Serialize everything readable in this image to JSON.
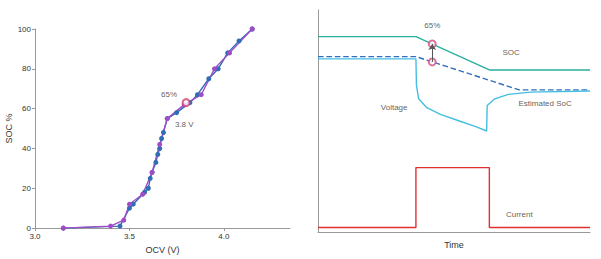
{
  "chart_data": [
    {
      "type": "line",
      "xlabel": "OCV (V)",
      "ylabel": "SOC %",
      "xlim": [
        3.0,
        4.35
      ],
      "xticks": [
        {
          "value": 3.0,
          "label": "3.0"
        },
        3.5,
        {
          "value": 4.0,
          "label": "4.0"
        }
      ],
      "ylim": [
        0,
        100
      ],
      "yticks": [
        0,
        20,
        40,
        60,
        80,
        100
      ],
      "grid": false,
      "series": [
        {
          "color": "#2f6db5",
          "marker": "circle",
          "line_style": "solid",
          "x": [
            3.15,
            3.45,
            3.5,
            3.52,
            3.58,
            3.6,
            3.61,
            3.62,
            3.64,
            3.65,
            3.66,
            3.67,
            3.68,
            3.7,
            3.75,
            3.82,
            3.86,
            3.92,
            3.97,
            4.02,
            4.08,
            4.15
          ],
          "values": [
            0,
            1,
            10,
            12,
            18,
            20,
            25,
            28,
            33,
            37,
            40,
            45,
            48,
            55,
            58,
            63,
            67,
            75,
            80,
            88,
            94,
            100
          ]
        },
        {
          "color": "#a04cc8",
          "marker": "circle",
          "line_style": "solid",
          "x": [
            3.15,
            3.4,
            3.47,
            3.5,
            3.57,
            3.62,
            3.66,
            3.7,
            3.79,
            3.88,
            3.95,
            4.03,
            4.15
          ],
          "values": [
            0,
            1,
            4,
            12,
            17,
            28,
            42,
            55,
            62,
            67,
            80,
            88,
            100
          ]
        },
        {
          "type": "scatter",
          "color": "#d04070",
          "marker": "open_circle",
          "x": [
            3.8
          ],
          "values": [
            63
          ]
        }
      ],
      "annotations": [
        {
          "text": "65%",
          "x": 3.71,
          "y": 67
        },
        {
          "text": "3.8 V",
          "x": 3.79,
          "y": 52
        }
      ]
    },
    {
      "type": "line",
      "xlabel": "Time",
      "xlim": [
        0,
        100
      ],
      "ylim": [
        0,
        100
      ],
      "grid": false,
      "tick_labels": false,
      "series": [
        {
          "color": "#2ab0a0",
          "line_style": "solid",
          "x": [
            0,
            36,
            63,
            100
          ],
          "values": [
            88,
            88,
            73,
            73
          ]
        },
        {
          "color": "#3070c0",
          "line_style": "dashed",
          "x": [
            0,
            36,
            74,
            100
          ],
          "values": [
            79,
            79,
            64,
            64
          ]
        },
        {
          "color": "#45bde3",
          "line_style": "solid",
          "x": [
            0,
            36,
            36.2,
            37,
            40,
            45,
            52,
            58,
            62,
            62.2,
            65,
            70,
            78,
            100
          ],
          "values": [
            78,
            78,
            66,
            60,
            56,
            53,
            50,
            47.5,
            45.5,
            57,
            60,
            62,
            63,
            63.5
          ]
        },
        {
          "color": "#e03030",
          "line_style": "solid",
          "x": [
            0,
            36,
            36,
            63,
            63,
            100
          ],
          "values": [
            2,
            2,
            29,
            29,
            2,
            2
          ]
        },
        {
          "type": "scatter",
          "color": "#d05080",
          "marker": "open_circle",
          "x": [
            42,
            42
          ],
          "values": [
            76.6,
            84.7
          ]
        }
      ],
      "annotations": [
        {
          "text": "65%",
          "x": 42,
          "y": 93
        },
        {
          "text": "SOC",
          "x": 71,
          "y": 81
        },
        {
          "text": "Estimated SoC",
          "x": 83.5,
          "y": 58
        },
        {
          "text": "Voltage",
          "x": 28,
          "y": 56
        },
        {
          "text": "Current",
          "x": 74,
          "y": 8
        }
      ]
    }
  ]
}
